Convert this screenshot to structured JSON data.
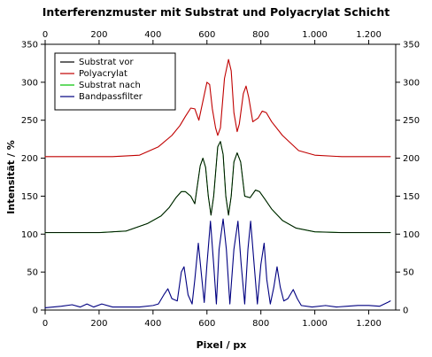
{
  "chart_data": {
    "type": "line",
    "title": "Interferenzmuster mit Substrat und Polyacrylat Schicht",
    "xlabel": "Pixel / px",
    "ylabel": "Intensität / %",
    "xlim": [
      0,
      1300
    ],
    "ylim": [
      0,
      350
    ],
    "x_ticks": [
      0,
      200,
      400,
      600,
      800,
      1000,
      1200
    ],
    "x_tick_labels": [
      "0",
      "200",
      "400",
      "600",
      "800",
      "1.000",
      "1.200"
    ],
    "y_ticks": [
      0,
      50,
      100,
      150,
      200,
      250,
      300,
      350
    ],
    "y_tick_labels": [
      "0",
      "50",
      "100",
      "150",
      "200",
      "250",
      "300",
      "350"
    ],
    "x_range": [
      0,
      1280
    ],
    "grid": false,
    "legend_position": "top-left",
    "series": [
      {
        "name": "Substrat vor",
        "color": "#000000",
        "points": [
          [
            0,
            102
          ],
          [
            200,
            102
          ],
          [
            300,
            104
          ],
          [
            380,
            114
          ],
          [
            430,
            124
          ],
          [
            460,
            135
          ],
          [
            485,
            148
          ],
          [
            505,
            156
          ],
          [
            520,
            156
          ],
          [
            540,
            150
          ],
          [
            555,
            140
          ],
          [
            575,
            190
          ],
          [
            585,
            200
          ],
          [
            595,
            188
          ],
          [
            605,
            150
          ],
          [
            615,
            125
          ],
          [
            625,
            150
          ],
          [
            640,
            215
          ],
          [
            650,
            222
          ],
          [
            660,
            205
          ],
          [
            670,
            150
          ],
          [
            680,
            125
          ],
          [
            690,
            150
          ],
          [
            700,
            195
          ],
          [
            712,
            207
          ],
          [
            725,
            195
          ],
          [
            740,
            150
          ],
          [
            760,
            148
          ],
          [
            780,
            158
          ],
          [
            795,
            156
          ],
          [
            815,
            146
          ],
          [
            840,
            133
          ],
          [
            880,
            118
          ],
          [
            930,
            108
          ],
          [
            1000,
            103
          ],
          [
            1100,
            102
          ],
          [
            1280,
            102
          ]
        ]
      },
      {
        "name": "Polyacrylat",
        "color": "#c00000",
        "points": [
          [
            0,
            202
          ],
          [
            250,
            202
          ],
          [
            350,
            204
          ],
          [
            420,
            215
          ],
          [
            470,
            230
          ],
          [
            500,
            243
          ],
          [
            520,
            255
          ],
          [
            540,
            266
          ],
          [
            555,
            265
          ],
          [
            570,
            250
          ],
          [
            585,
            275
          ],
          [
            600,
            300
          ],
          [
            610,
            297
          ],
          [
            620,
            265
          ],
          [
            632,
            240
          ],
          [
            640,
            230
          ],
          [
            650,
            240
          ],
          [
            665,
            305
          ],
          [
            680,
            330
          ],
          [
            690,
            315
          ],
          [
            700,
            260
          ],
          [
            712,
            235
          ],
          [
            720,
            245
          ],
          [
            735,
            285
          ],
          [
            745,
            295
          ],
          [
            755,
            280
          ],
          [
            770,
            248
          ],
          [
            790,
            253
          ],
          [
            805,
            262
          ],
          [
            820,
            260
          ],
          [
            840,
            248
          ],
          [
            880,
            230
          ],
          [
            940,
            210
          ],
          [
            1000,
            204
          ],
          [
            1100,
            202
          ],
          [
            1280,
            202
          ]
        ]
      },
      {
        "name": "Substrat nach",
        "color": "#00c000",
        "points": [
          [
            0,
            102
          ],
          [
            200,
            102
          ],
          [
            300,
            104
          ],
          [
            380,
            114
          ],
          [
            430,
            124
          ],
          [
            460,
            135
          ],
          [
            485,
            148
          ],
          [
            505,
            156
          ],
          [
            520,
            156
          ],
          [
            540,
            150
          ],
          [
            555,
            140
          ],
          [
            575,
            190
          ],
          [
            585,
            200
          ],
          [
            595,
            188
          ],
          [
            605,
            150
          ],
          [
            615,
            125
          ],
          [
            625,
            150
          ],
          [
            640,
            215
          ],
          [
            650,
            222
          ],
          [
            660,
            205
          ],
          [
            670,
            150
          ],
          [
            680,
            125
          ],
          [
            690,
            150
          ],
          [
            700,
            195
          ],
          [
            712,
            207
          ],
          [
            725,
            195
          ],
          [
            740,
            150
          ],
          [
            760,
            148
          ],
          [
            780,
            158
          ],
          [
            795,
            156
          ],
          [
            815,
            146
          ],
          [
            840,
            133
          ],
          [
            880,
            118
          ],
          [
            930,
            108
          ],
          [
            1000,
            103
          ],
          [
            1100,
            102
          ],
          [
            1280,
            102
          ]
        ]
      },
      {
        "name": "Bandpassfilter",
        "color": "#000080",
        "points": [
          [
            0,
            3
          ],
          [
            60,
            5
          ],
          [
            100,
            7
          ],
          [
            130,
            4
          ],
          [
            155,
            8
          ],
          [
            180,
            4
          ],
          [
            210,
            8
          ],
          [
            250,
            4
          ],
          [
            300,
            4
          ],
          [
            350,
            4
          ],
          [
            400,
            6
          ],
          [
            420,
            8
          ],
          [
            440,
            20
          ],
          [
            455,
            28
          ],
          [
            470,
            15
          ],
          [
            490,
            12
          ],
          [
            505,
            50
          ],
          [
            515,
            57
          ],
          [
            530,
            20
          ],
          [
            545,
            8
          ],
          [
            555,
            40
          ],
          [
            568,
            88
          ],
          [
            580,
            45
          ],
          [
            590,
            10
          ],
          [
            600,
            60
          ],
          [
            613,
            117
          ],
          [
            625,
            60
          ],
          [
            635,
            8
          ],
          [
            645,
            80
          ],
          [
            660,
            120
          ],
          [
            672,
            80
          ],
          [
            685,
            8
          ],
          [
            700,
            80
          ],
          [
            715,
            117
          ],
          [
            727,
            60
          ],
          [
            740,
            8
          ],
          [
            752,
            80
          ],
          [
            762,
            117
          ],
          [
            775,
            60
          ],
          [
            787,
            8
          ],
          [
            800,
            60
          ],
          [
            812,
            88
          ],
          [
            822,
            40
          ],
          [
            835,
            8
          ],
          [
            848,
            30
          ],
          [
            860,
            57
          ],
          [
            872,
            30
          ],
          [
            885,
            12
          ],
          [
            900,
            15
          ],
          [
            920,
            27
          ],
          [
            935,
            15
          ],
          [
            950,
            6
          ],
          [
            990,
            4
          ],
          [
            1040,
            6
          ],
          [
            1080,
            4
          ],
          [
            1120,
            5
          ],
          [
            1160,
            6
          ],
          [
            1200,
            6
          ],
          [
            1240,
            5
          ],
          [
            1270,
            10
          ],
          [
            1280,
            12
          ]
        ]
      }
    ]
  }
}
